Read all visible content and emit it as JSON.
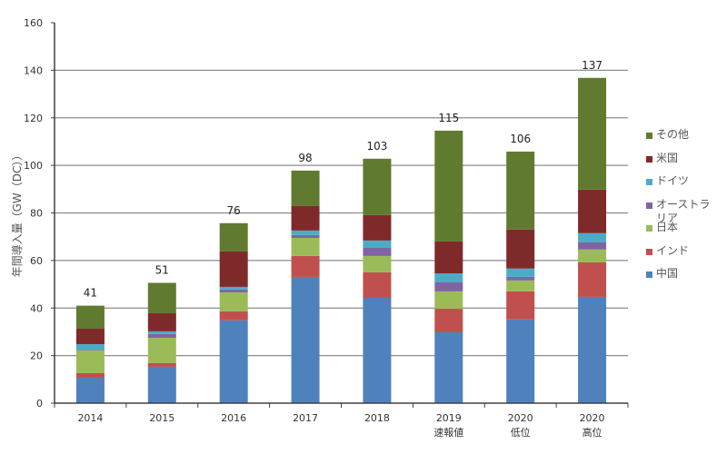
{
  "chart_data": {
    "type": "bar",
    "stacked": true,
    "title": "",
    "xlabel": "",
    "ylabel": "年間導入量（GW（DC））",
    "ylim": [
      0,
      160
    ],
    "yticks": [
      0,
      20,
      40,
      60,
      80,
      100,
      120,
      140,
      160
    ],
    "grid": true,
    "legend_position": "right",
    "categories": [
      [
        "2014"
      ],
      [
        "2015"
      ],
      [
        "2016"
      ],
      [
        "2017"
      ],
      [
        "2018"
      ],
      [
        "2019",
        "速報値"
      ],
      [
        "2020",
        "低位"
      ],
      [
        "2020",
        "高位"
      ]
    ],
    "totals": [
      "41",
      "51",
      "76",
      "98",
      "103",
      "115",
      "106",
      "137"
    ],
    "series": [
      {
        "name": "中国",
        "color": "#4F81BD",
        "values": [
          10.7,
          15.3,
          34.8,
          53.1,
          44.3,
          29.8,
          35.2,
          44.7
        ]
      },
      {
        "name": "インド",
        "color": "#C0504D",
        "values": [
          1.9,
          1.5,
          3.8,
          8.8,
          10.7,
          9.9,
          11.8,
          14.5
        ]
      },
      {
        "name": "日本",
        "color": "#9BBB59",
        "values": [
          9.6,
          10.7,
          8.0,
          7.6,
          6.9,
          7.3,
          4.6,
          5.4
        ]
      },
      {
        "name": "オーストラリア",
        "color": "#8064A2",
        "values": [
          0.3,
          1.6,
          1.2,
          1.2,
          3.4,
          3.8,
          1.5,
          3.0
        ]
      },
      {
        "name": "ドイツ",
        "color": "#4BACC6",
        "values": [
          2.3,
          1.1,
          1.1,
          1.9,
          3.1,
          3.8,
          3.5,
          3.9
        ]
      },
      {
        "name": "米国",
        "color": "#7F2A2A",
        "values": [
          6.5,
          7.6,
          14.9,
          10.4,
          10.7,
          13.4,
          16.4,
          18.3
        ]
      },
      {
        "name": "その他",
        "color": "#607B2F",
        "values": [
          9.7,
          12.8,
          11.9,
          14.8,
          23.7,
          46.6,
          32.8,
          47.0
        ]
      }
    ],
    "legend_order": [
      "その他",
      "米国",
      "ドイツ",
      "オーストラリア",
      "日本",
      "インド",
      "中国"
    ]
  }
}
